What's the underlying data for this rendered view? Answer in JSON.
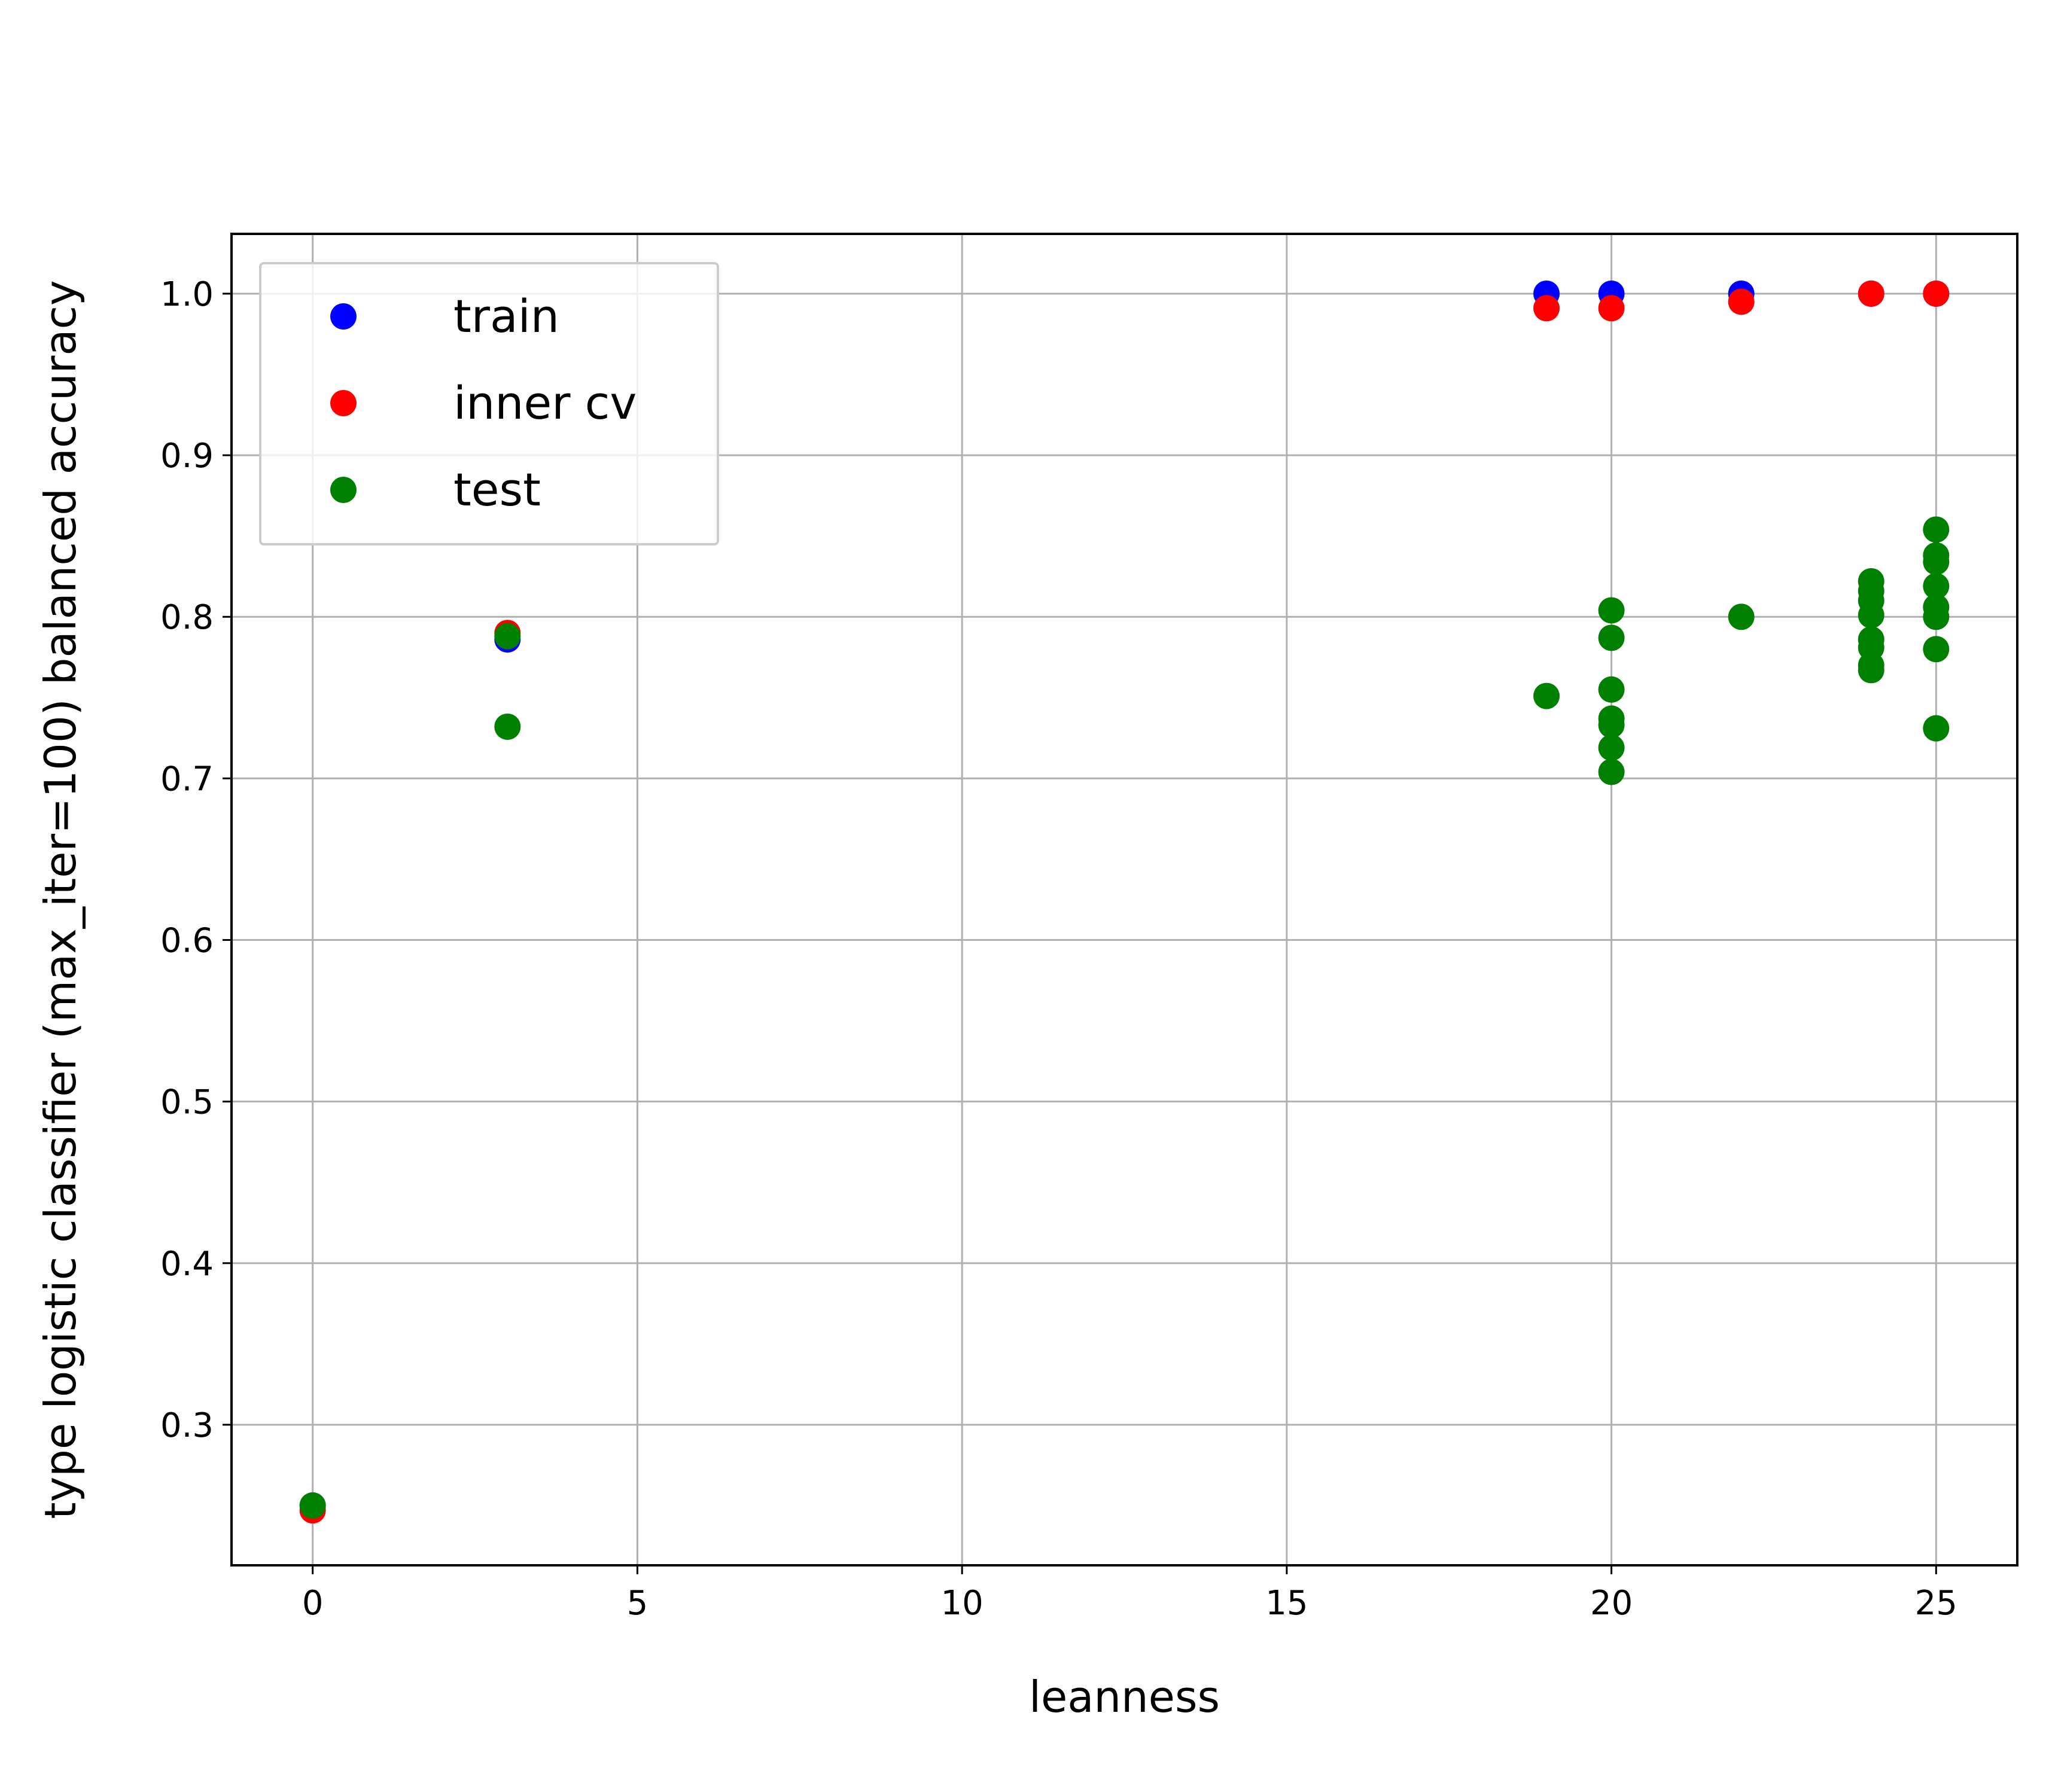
{
  "chart_data": {
    "type": "scatter",
    "title": "",
    "xlabel": "leanness",
    "ylabel": "type logistic classifier (max_iter=100) balanced accuracy",
    "xlim": [
      -1.25,
      26.25
    ],
    "ylim": [
      0.213,
      1.037
    ],
    "xticks": [
      0,
      5,
      10,
      15,
      20,
      25
    ],
    "yticks": [
      0.3,
      0.4,
      0.5,
      0.6,
      0.7,
      0.8,
      0.9,
      1.0
    ],
    "xtick_labels": [
      "0",
      "5",
      "10",
      "15",
      "20",
      "25"
    ],
    "ytick_labels": [
      "0.3",
      "0.4",
      "0.5",
      "0.6",
      "0.7",
      "0.8",
      "0.9",
      "1.0"
    ],
    "grid": true,
    "legend_position": "top-left",
    "series": [
      {
        "name": "train",
        "color": "#0000ff",
        "points": [
          [
            0,
            0.25
          ],
          [
            3,
            0.786
          ],
          [
            19,
            1.0
          ],
          [
            20,
            1.0
          ],
          [
            22,
            1.0
          ],
          [
            24,
            1.0
          ],
          [
            25,
            1.0
          ]
        ]
      },
      {
        "name": "inner cv",
        "color": "#ff0000",
        "points": [
          [
            0,
            0.247
          ],
          [
            3,
            0.79
          ],
          [
            19,
            0.991
          ],
          [
            20,
            0.991
          ],
          [
            22,
            0.995
          ],
          [
            24,
            1.0
          ],
          [
            25,
            1.0
          ]
        ]
      },
      {
        "name": "test",
        "color": "#008000",
        "points": [
          [
            0,
            0.25
          ],
          [
            3,
            0.788
          ],
          [
            3,
            0.732
          ],
          [
            19,
            0.751
          ],
          [
            20,
            0.804
          ],
          [
            20,
            0.787
          ],
          [
            20,
            0.755
          ],
          [
            20,
            0.737
          ],
          [
            20,
            0.733
          ],
          [
            20,
            0.719
          ],
          [
            20,
            0.704
          ],
          [
            22,
            0.8
          ],
          [
            24,
            0.822
          ],
          [
            24,
            0.816
          ],
          [
            24,
            0.81
          ],
          [
            24,
            0.801
          ],
          [
            24,
            0.786
          ],
          [
            24,
            0.781
          ],
          [
            24,
            0.77
          ],
          [
            24,
            0.767
          ],
          [
            25,
            0.854
          ],
          [
            25,
            0.838
          ],
          [
            25,
            0.834
          ],
          [
            25,
            0.819
          ],
          [
            25,
            0.806
          ],
          [
            25,
            0.8
          ],
          [
            25,
            0.78
          ],
          [
            25,
            0.731
          ]
        ]
      }
    ]
  }
}
